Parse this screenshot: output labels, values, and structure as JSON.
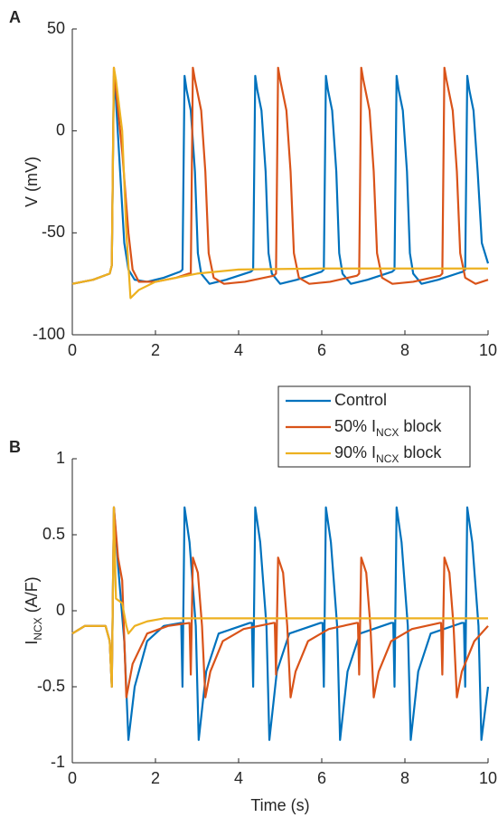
{
  "chart_data": [
    {
      "type": "line",
      "title": "A",
      "ylabel": [
        "V (mV)"
      ],
      "xlim": [
        0,
        10
      ],
      "xticks": [
        0,
        2,
        4,
        6,
        8,
        10
      ],
      "ylim": [
        -100,
        50
      ],
      "yticks": [
        -100,
        -50,
        0,
        50
      ],
      "series": [
        {
          "color": "#0072bd",
          "x": [
            0,
            0.5,
            0.9,
            0.95,
            1.0,
            1.05,
            1.15,
            1.25,
            1.35,
            1.5,
            1.8,
            2.2,
            2.6,
            2.65,
            2.7,
            2.75,
            2.85,
            2.95,
            3.02,
            3.1,
            3.3,
            3.7,
            4.3,
            4.35,
            4.4,
            4.45,
            4.55,
            4.65,
            4.72,
            4.8,
            5.0,
            5.4,
            6.0,
            6.05,
            6.1,
            6.15,
            6.25,
            6.35,
            6.42,
            6.5,
            6.7,
            7.1,
            7.7,
            7.75,
            7.8,
            7.85,
            7.95,
            8.05,
            8.12,
            8.2,
            8.4,
            8.8,
            9.4,
            9.45,
            9.5,
            9.55,
            9.65,
            9.75,
            9.85,
            10
          ],
          "values": [
            -75,
            -73,
            -70,
            -66,
            27,
            15,
            -20,
            -55,
            -68,
            -73,
            -74,
            -72,
            -69,
            -68,
            27,
            20,
            10,
            -20,
            -60,
            -70,
            -75,
            -73,
            -69,
            -68,
            27,
            20,
            10,
            -20,
            -60,
            -70,
            -75,
            -73,
            -69,
            -68,
            27,
            20,
            10,
            -20,
            -60,
            -70,
            -75,
            -73,
            -69,
            -68,
            27,
            20,
            10,
            -20,
            -60,
            -70,
            -75,
            -73,
            -69,
            -68,
            27,
            20,
            10,
            -20,
            -55,
            -65
          ]
        },
        {
          "color": "#d95319",
          "x": [
            0,
            0.5,
            0.9,
            0.95,
            1.0,
            1.05,
            1.2,
            1.35,
            1.45,
            1.6,
            2.0,
            2.5,
            2.8,
            2.85,
            2.9,
            2.95,
            3.1,
            3.2,
            3.28,
            3.4,
            3.65,
            4.15,
            4.85,
            4.9,
            4.95,
            5.0,
            5.15,
            5.25,
            5.33,
            5.45,
            5.7,
            6.2,
            6.85,
            6.9,
            6.95,
            7.0,
            7.15,
            7.25,
            7.33,
            7.45,
            7.7,
            8.2,
            8.85,
            8.9,
            8.95,
            9.0,
            9.15,
            9.25,
            9.33,
            9.45,
            9.7,
            10
          ],
          "values": [
            -75,
            -73,
            -70,
            -66,
            31,
            20,
            -10,
            -50,
            -68,
            -74,
            -74,
            -72,
            -70,
            -70,
            31,
            25,
            10,
            -20,
            -60,
            -72,
            -75,
            -74,
            -71,
            -70,
            31,
            25,
            10,
            -20,
            -60,
            -72,
            -75,
            -74,
            -71,
            -70,
            31,
            25,
            10,
            -20,
            -60,
            -72,
            -75,
            -74,
            -71,
            -70,
            31,
            25,
            10,
            -20,
            -60,
            -72,
            -75,
            -73
          ]
        },
        {
          "color": "#edb120",
          "x": [
            0,
            0.5,
            0.9,
            0.95,
            1.0,
            1.05,
            1.2,
            1.3,
            1.4,
            1.6,
            2.0,
            3.0,
            4.0,
            6.0,
            10
          ],
          "values": [
            -75,
            -73,
            -70,
            -66,
            31,
            25,
            0,
            -50,
            -82,
            -78,
            -74,
            -70,
            -68,
            -67.5,
            -67.5
          ]
        }
      ]
    },
    {
      "type": "line",
      "title": "B",
      "ylabel": [
        "I",
        "NCX",
        " (A/F)"
      ],
      "xlabel": "Time (s)",
      "xlim": [
        0,
        10
      ],
      "xticks": [
        0,
        2,
        4,
        6,
        8,
        10
      ],
      "ylim": [
        -1,
        1
      ],
      "yticks": [
        -1,
        -0.5,
        0,
        0.5,
        1
      ],
      "legend": "upper right",
      "series": [
        {
          "name": [
            "Control"
          ],
          "color": "#0072bd",
          "x": [
            0,
            0.3,
            0.8,
            0.9,
            0.95,
            1.0,
            1.1,
            1.25,
            1.35,
            1.5,
            1.8,
            2.2,
            2.62,
            2.65,
            2.7,
            2.82,
            2.97,
            3.04,
            3.22,
            3.52,
            4.27,
            4.32,
            4.35,
            4.4,
            4.52,
            4.67,
            4.74,
            4.92,
            5.22,
            5.97,
            6.02,
            6.05,
            6.1,
            6.22,
            6.37,
            6.44,
            6.62,
            6.92,
            7.67,
            7.72,
            7.75,
            7.8,
            7.92,
            8.07,
            8.14,
            8.32,
            8.62,
            9.37,
            9.42,
            9.45,
            9.5,
            9.62,
            9.77,
            9.84,
            10
          ],
          "values": [
            -0.15,
            -0.1,
            -0.1,
            -0.2,
            -0.5,
            0.68,
            0.3,
            -0.2,
            -0.85,
            -0.5,
            -0.2,
            -0.1,
            -0.08,
            -0.5,
            0.68,
            0.45,
            -0.1,
            -0.85,
            -0.4,
            -0.15,
            -0.08,
            -0.08,
            -0.5,
            0.68,
            0.45,
            -0.1,
            -0.85,
            -0.4,
            -0.15,
            -0.08,
            -0.08,
            -0.5,
            0.68,
            0.45,
            -0.1,
            -0.85,
            -0.4,
            -0.15,
            -0.08,
            -0.08,
            -0.5,
            0.68,
            0.45,
            -0.1,
            -0.85,
            -0.4,
            -0.15,
            -0.08,
            -0.08,
            -0.5,
            0.68,
            0.45,
            -0.1,
            -0.85,
            -0.5
          ]
        },
        {
          "name": [
            "50% I",
            "NCX",
            " block"
          ],
          "color": "#d95319",
          "x": [
            0,
            0.3,
            0.8,
            0.9,
            0.95,
            1.0,
            1.1,
            1.2,
            1.3,
            1.45,
            1.8,
            2.3,
            2.82,
            2.85,
            2.9,
            3.02,
            3.12,
            3.2,
            3.32,
            3.62,
            4.12,
            4.84,
            4.87,
            4.9,
            4.95,
            5.07,
            5.17,
            5.25,
            5.37,
            5.67,
            6.17,
            6.84,
            6.87,
            6.9,
            6.95,
            7.07,
            7.17,
            7.25,
            7.37,
            7.67,
            8.17,
            8.84,
            8.87,
            8.9,
            8.95,
            9.07,
            9.17,
            9.25,
            9.37,
            9.67,
            10
          ],
          "values": [
            -0.15,
            -0.1,
            -0.1,
            -0.2,
            -0.5,
            0.68,
            0.35,
            0.2,
            -0.57,
            -0.35,
            -0.15,
            -0.1,
            -0.08,
            -0.42,
            0.35,
            0.25,
            -0.1,
            -0.57,
            -0.4,
            -0.2,
            -0.12,
            -0.08,
            -0.08,
            -0.42,
            0.35,
            0.25,
            -0.1,
            -0.57,
            -0.4,
            -0.2,
            -0.12,
            -0.08,
            -0.08,
            -0.42,
            0.35,
            0.25,
            -0.1,
            -0.57,
            -0.4,
            -0.2,
            -0.12,
            -0.08,
            -0.08,
            -0.42,
            0.35,
            0.25,
            -0.1,
            -0.57,
            -0.4,
            -0.2,
            -0.1
          ]
        },
        {
          "name": [
            "90% I",
            "NCX",
            " block"
          ],
          "color": "#edb120",
          "x": [
            0,
            0.3,
            0.8,
            0.9,
            0.95,
            1.0,
            1.05,
            1.2,
            1.3,
            1.35,
            1.5,
            1.8,
            2.2,
            3,
            10
          ],
          "values": [
            -0.15,
            -0.1,
            -0.1,
            -0.2,
            -0.5,
            0.68,
            0.08,
            0.05,
            -0.1,
            -0.15,
            -0.1,
            -0.07,
            -0.05,
            -0.05,
            -0.05
          ]
        }
      ]
    }
  ]
}
